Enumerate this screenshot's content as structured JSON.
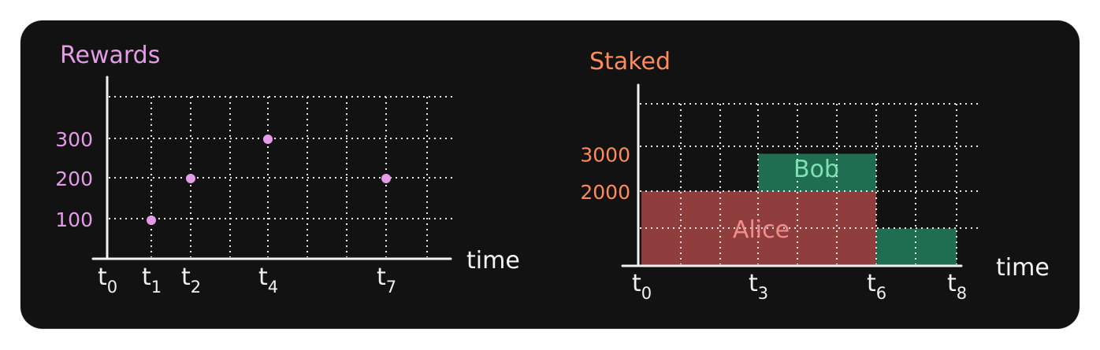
{
  "chart_data": [
    {
      "type": "scatter",
      "title": "Rewards",
      "xlabel": "time",
      "ylabel": "",
      "x_ticks": [
        "t0",
        "t1",
        "t2",
        "t4",
        "t7"
      ],
      "y_ticks": [
        100,
        200,
        300
      ],
      "points": [
        {
          "x": "t1",
          "y": 100
        },
        {
          "x": "t2",
          "y": 200
        },
        {
          "x": "t4",
          "y": 300
        },
        {
          "x": "t7",
          "y": 200
        }
      ],
      "ylim": [
        0,
        400
      ],
      "grid": true,
      "color": "#e49be8"
    },
    {
      "type": "area",
      "title": "Staked",
      "xlabel": "time",
      "ylabel": "",
      "x_ticks": [
        "t0",
        "t3",
        "t6",
        "t8"
      ],
      "y_ticks": [
        2000,
        3000
      ],
      "series": [
        {
          "name": "Alice",
          "segments": [
            {
              "x0": "t0",
              "x1": "t6",
              "y0": 0,
              "y1": 2000
            }
          ],
          "color": "#8f3d3d"
        },
        {
          "name": "Bob",
          "segments": [
            {
              "x0": "t3",
              "x1": "t6",
              "y0": 2000,
              "y1": 3000
            },
            {
              "x0": "t6",
              "x1": "t8",
              "y0": 0,
              "y1": 1000
            }
          ],
          "color": "#1f6e51"
        }
      ],
      "ylim": [
        0,
        4000
      ],
      "grid": true,
      "color": "#ff8a5c"
    }
  ]
}
